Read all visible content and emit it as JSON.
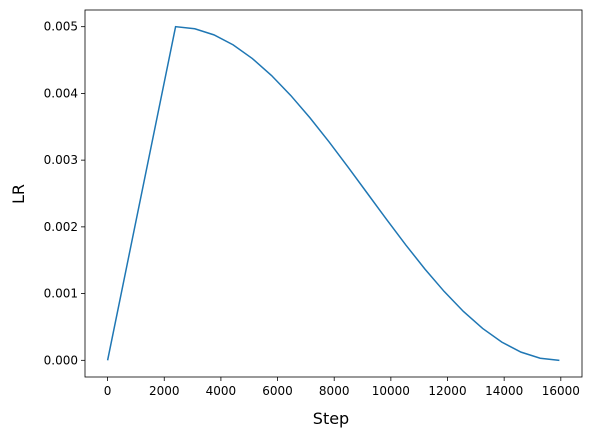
{
  "chart_data": {
    "type": "line",
    "x_label": "Step",
    "y_label": "LR",
    "x": [
      0,
      2400,
      3077.5,
      3755,
      4432.5,
      5110,
      5787.5,
      6465,
      7142.5,
      7820,
      8497.5,
      9175,
      9852.5,
      10530,
      11207.5,
      11885,
      12562.5,
      13240,
      13917.5,
      14595,
      15272.5,
      15950
    ],
    "series": [
      {
        "color": "#1f77b4",
        "values": [
          0,
          0.005,
          0.0049692,
          0.0048776,
          0.0047275,
          0.0045225,
          0.0042678,
          0.0039695,
          0.003635,
          0.0032725,
          0.0028911,
          0.0025,
          0.0021089,
          0.0017275,
          0.001365,
          0.0010305,
          0.0007322,
          0.0004775,
          0.0002725,
          0.0001224,
          3.08e-05,
          0
        ]
      }
    ],
    "xlim": [
      -798,
      16748
    ],
    "ylim": [
      -0.00025,
      0.00525
    ],
    "xticks": [
      0,
      2000,
      4000,
      6000,
      8000,
      10000,
      12000,
      14000,
      16000
    ],
    "yticks": [
      {
        "value": 0,
        "label": "0.000"
      },
      {
        "value": 0.001,
        "label": "0.001"
      },
      {
        "value": 0.002,
        "label": "0.002"
      },
      {
        "value": 0.003,
        "label": "0.003"
      },
      {
        "value": 0.004,
        "label": "0.004"
      },
      {
        "value": 0.005,
        "label": "0.005"
      }
    ]
  }
}
